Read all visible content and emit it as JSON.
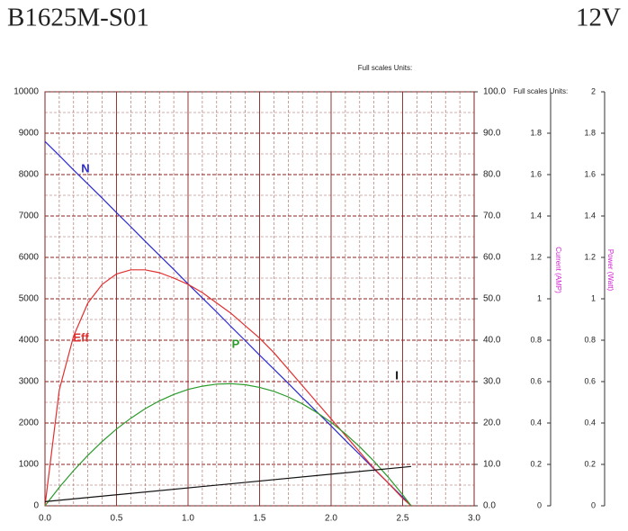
{
  "chart_data": {
    "type": "line",
    "title": "B1625M-S01",
    "subtitle": "12V",
    "annotations": [
      "Full scales Units:",
      "Full scales Units:"
    ],
    "y3label": "Current (AMP)",
    "y4label": "Power (Watt)",
    "grid": true,
    "x": [
      0,
      0.1,
      0.2,
      0.3,
      0.4,
      0.5,
      0.6,
      0.7,
      0.8,
      0.9,
      1.0,
      1.1,
      1.2,
      1.3,
      1.4,
      1.5,
      1.6,
      1.7,
      1.8,
      1.9,
      2.0,
      2.1,
      2.2,
      2.3,
      2.4,
      2.5,
      2.56
    ],
    "xlim": [
      0,
      3
    ],
    "xticks": [
      {
        "value": 0,
        "label": "0.0"
      },
      0.5,
      {
        "value": 1,
        "label": "1.0"
      },
      1.5,
      {
        "value": 2,
        "label": "2.0"
      },
      2.5,
      {
        "value": 3,
        "label": "3.0"
      }
    ],
    "ylim": [
      0,
      10000
    ],
    "yticks": [
      0,
      1000,
      2000,
      3000,
      4000,
      5000,
      6000,
      7000,
      8000,
      9000,
      10000
    ],
    "y2lim": [
      0,
      100
    ],
    "y2ticks": [
      {
        "value": 0,
        "label": "0.0"
      },
      {
        "value": 10,
        "label": "10.0"
      },
      {
        "value": 20,
        "label": "20.0"
      },
      {
        "value": 30,
        "label": "30.0"
      },
      {
        "value": 40,
        "label": "40.0"
      },
      {
        "value": 50,
        "label": "50.0"
      },
      {
        "value": 60,
        "label": "60.0"
      },
      {
        "value": 70,
        "label": "70.0"
      },
      {
        "value": 80,
        "label": "80.0"
      },
      {
        "value": 90,
        "label": "90.0"
      },
      {
        "value": 100,
        "label": "100.0"
      }
    ],
    "y3lim": [
      0,
      2
    ],
    "y3ticks": [
      0,
      0.2,
      0.4,
      0.6,
      0.8,
      1,
      1.2,
      1.4,
      1.6,
      1.8
    ],
    "y4lim": [
      0,
      2
    ],
    "y4ticks": [
      0,
      0.2,
      0.4,
      0.6,
      0.8,
      1,
      1.2,
      1.4,
      1.6,
      1.8,
      2
    ],
    "series": [
      {
        "name": "N",
        "color": "#2a2ad0",
        "axis": "y",
        "values": [
          8800,
          8460,
          8110,
          7770,
          7430,
          7080,
          6740,
          6390,
          6050,
          5710,
          5360,
          5020,
          4680,
          4330,
          3990,
          3640,
          3300,
          2960,
          2610,
          2270,
          1930,
          1580,
          1240,
          890,
          550,
          210,
          0
        ]
      },
      {
        "name": "Eff",
        "color": "#e03030",
        "axis": "y2",
        "values": [
          0,
          28,
          41,
          49,
          53.5,
          56,
          57,
          57,
          56.3,
          55,
          53.5,
          51.5,
          49,
          46.5,
          43.5,
          40.5,
          37,
          33,
          29,
          25,
          21,
          17,
          13,
          9,
          5.5,
          1.8,
          0
        ]
      },
      {
        "name": "P",
        "color": "#2a9a2a",
        "axis": "y4",
        "values": [
          0,
          0.089,
          0.17,
          0.244,
          0.311,
          0.371,
          0.423,
          0.469,
          0.507,
          0.538,
          0.562,
          0.578,
          0.588,
          0.59,
          0.585,
          0.572,
          0.553,
          0.526,
          0.492,
          0.451,
          0.403,
          0.348,
          0.285,
          0.215,
          0.138,
          0.054,
          0
        ]
      },
      {
        "name": "I",
        "color": "#111111",
        "axis": "y3",
        "x": [
          0,
          2.56
        ],
        "values": [
          0.02,
          0.19
        ]
      }
    ]
  }
}
